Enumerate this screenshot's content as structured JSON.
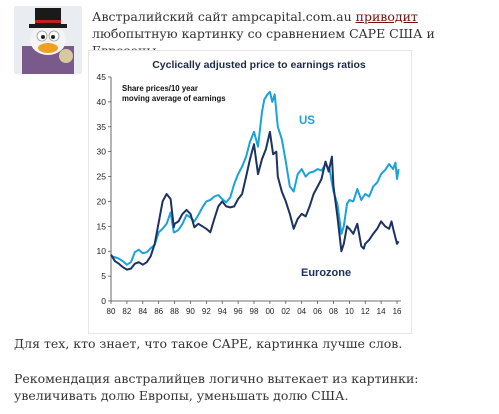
{
  "post": {
    "intro_before": "Австралийский сайт ampcapital.com.au ",
    "intro_link": "приводит",
    "intro_after": " любопытную картинку со сравнением CAPE США и Еврозоны.",
    "paragraph_1": "Для тех, кто знает, что такое CAPE, картинка лучше слов.",
    "paragraph_2": "Рекомендация австралийцев логично вытекает из картинки: увеличивать долю Европы, уменьшать долю США."
  },
  "colors": {
    "us": "#1aa2dc",
    "eurozone": "#1c3260",
    "title": "#1c2a4a",
    "link": "#7a0c0c"
  },
  "chart_data": {
    "type": "line",
    "title": "Cyclically adjusted price to earnings ratios",
    "annotation_line1": "Share prices/10 year",
    "annotation_line2": "moving average of earnings",
    "ylim": [
      0,
      45
    ],
    "xlim": [
      1980,
      2016.5
    ],
    "y_ticks": [
      0,
      5,
      10,
      15,
      20,
      25,
      30,
      35,
      40,
      45
    ],
    "x_ticks": [
      "80",
      "82",
      "84",
      "86",
      "88",
      "90",
      "92",
      "94",
      "96",
      "98",
      "00",
      "02",
      "04",
      "06",
      "08",
      "10",
      "12",
      "14",
      "16"
    ],
    "grid": false,
    "series": [
      {
        "name": "US",
        "points": [
          [
            1980,
            9
          ],
          [
            1980.5,
            8.8
          ],
          [
            1981,
            8.5
          ],
          [
            1981.5,
            8.0
          ],
          [
            1982,
            7.3
          ],
          [
            1982.5,
            7.8
          ],
          [
            1983,
            9.8
          ],
          [
            1983.5,
            10.3
          ],
          [
            1984,
            9.6
          ],
          [
            1984.5,
            9.8
          ],
          [
            1985,
            10.6
          ],
          [
            1985.5,
            11.3
          ],
          [
            1986,
            13.8
          ],
          [
            1986.5,
            14.5
          ],
          [
            1987,
            15.5
          ],
          [
            1987.5,
            17.8
          ],
          [
            1987.9,
            13.8
          ],
          [
            1988,
            13.8
          ],
          [
            1988.5,
            14.3
          ],
          [
            1989,
            15.5
          ],
          [
            1989.5,
            17.3
          ],
          [
            1990,
            16.8
          ],
          [
            1990.5,
            16.0
          ],
          [
            1991,
            17.3
          ],
          [
            1991.5,
            18.8
          ],
          [
            1992,
            20.0
          ],
          [
            1992.5,
            20.3
          ],
          [
            1993,
            21.0
          ],
          [
            1993.5,
            21.3
          ],
          [
            1994,
            20.5
          ],
          [
            1994.5,
            19.8
          ],
          [
            1995,
            20.8
          ],
          [
            1995.5,
            23.5
          ],
          [
            1996,
            25.5
          ],
          [
            1996.5,
            27.0
          ],
          [
            1997,
            29.0
          ],
          [
            1997.5,
            32.0
          ],
          [
            1998,
            34.0
          ],
          [
            1998.5,
            31.0
          ],
          [
            1999,
            38.0
          ],
          [
            1999.3,
            40.5
          ],
          [
            1999.7,
            41.5
          ],
          [
            2000,
            42.0
          ],
          [
            2000.3,
            40.0
          ],
          [
            2000.6,
            41.5
          ],
          [
            2001,
            35.0
          ],
          [
            2001.5,
            32.5
          ],
          [
            2002,
            28.0
          ],
          [
            2002.5,
            23.0
          ],
          [
            2003,
            22.0
          ],
          [
            2003.5,
            25.5
          ],
          [
            2004,
            26.5
          ],
          [
            2004.5,
            25.0
          ],
          [
            2005,
            25.8
          ],
          [
            2005.5,
            26.0
          ],
          [
            2006,
            26.5
          ],
          [
            2006.5,
            26.2
          ],
          [
            2007,
            27.5
          ],
          [
            2007.5,
            26.5
          ],
          [
            2008,
            22.0
          ],
          [
            2008.5,
            19.5
          ],
          [
            2009,
            13.5
          ],
          [
            2009.3,
            15.0
          ],
          [
            2009.7,
            19.5
          ],
          [
            2010,
            20.3
          ],
          [
            2010.5,
            20.0
          ],
          [
            2011,
            22.5
          ],
          [
            2011.5,
            20.3
          ],
          [
            2012,
            21.5
          ],
          [
            2012.5,
            21.0
          ],
          [
            2013,
            23.0
          ],
          [
            2013.5,
            23.8
          ],
          [
            2014,
            25.5
          ],
          [
            2014.5,
            26.3
          ],
          [
            2015,
            27.5
          ],
          [
            2015.5,
            26.5
          ],
          [
            2015.8,
            27.8
          ],
          [
            2016,
            24.5
          ],
          [
            2016.2,
            26.5
          ]
        ]
      },
      {
        "name": "Eurozone",
        "points": [
          [
            1980,
            9.3
          ],
          [
            1980.5,
            8.0
          ],
          [
            1981,
            7.5
          ],
          [
            1981.5,
            6.8
          ],
          [
            1982,
            6.3
          ],
          [
            1982.5,
            6.5
          ],
          [
            1983,
            7.5
          ],
          [
            1983.5,
            7.8
          ],
          [
            1984,
            7.3
          ],
          [
            1984.5,
            7.8
          ],
          [
            1985,
            9.0
          ],
          [
            1985.5,
            11.5
          ],
          [
            1986,
            15.8
          ],
          [
            1986.5,
            20.0
          ],
          [
            1987,
            21.5
          ],
          [
            1987.5,
            20.5
          ],
          [
            1987.9,
            14.8
          ],
          [
            1988,
            15.5
          ],
          [
            1988.5,
            16.0
          ],
          [
            1989,
            17.5
          ],
          [
            1989.5,
            18.3
          ],
          [
            1990,
            17.5
          ],
          [
            1990.5,
            14.8
          ],
          [
            1991,
            15.5
          ],
          [
            1991.5,
            15.0
          ],
          [
            1992,
            14.5
          ],
          [
            1992.5,
            13.8
          ],
          [
            1993,
            16.5
          ],
          [
            1993.5,
            19.0
          ],
          [
            1994,
            20.0
          ],
          [
            1994.5,
            19.0
          ],
          [
            1995,
            18.8
          ],
          [
            1995.5,
            19.0
          ],
          [
            1996,
            20.5
          ],
          [
            1996.5,
            21.5
          ],
          [
            1997,
            25.0
          ],
          [
            1997.5,
            28.5
          ],
          [
            1998,
            31.5
          ],
          [
            1998.5,
            25.5
          ],
          [
            1999,
            28.5
          ],
          [
            1999.5,
            30.5
          ],
          [
            2000,
            34.0
          ],
          [
            2000.4,
            29.5
          ],
          [
            2000.8,
            30.0
          ],
          [
            2001,
            25.0
          ],
          [
            2001.5,
            22.0
          ],
          [
            2002,
            20.0
          ],
          [
            2002.5,
            17.5
          ],
          [
            2003,
            14.5
          ],
          [
            2003.5,
            16.5
          ],
          [
            2004,
            17.5
          ],
          [
            2004.5,
            17.0
          ],
          [
            2005,
            19.0
          ],
          [
            2005.5,
            21.5
          ],
          [
            2006,
            23.0
          ],
          [
            2006.5,
            24.5
          ],
          [
            2007,
            28.0
          ],
          [
            2007.4,
            26.0
          ],
          [
            2007.8,
            29.0
          ],
          [
            2008,
            23.0
          ],
          [
            2008.5,
            17.0
          ],
          [
            2009,
            10.0
          ],
          [
            2009.3,
            11.5
          ],
          [
            2009.7,
            15.0
          ],
          [
            2010,
            14.5
          ],
          [
            2010.5,
            13.5
          ],
          [
            2011,
            15.5
          ],
          [
            2011.5,
            11.0
          ],
          [
            2011.8,
            10.5
          ],
          [
            2012,
            11.5
          ],
          [
            2012.5,
            12.3
          ],
          [
            2013,
            13.5
          ],
          [
            2013.5,
            14.5
          ],
          [
            2014,
            16.0
          ],
          [
            2014.5,
            15.0
          ],
          [
            2015,
            14.5
          ],
          [
            2015.3,
            16.0
          ],
          [
            2015.6,
            14.0
          ],
          [
            2016,
            11.5
          ],
          [
            2016.2,
            12.0
          ]
        ]
      }
    ]
  }
}
